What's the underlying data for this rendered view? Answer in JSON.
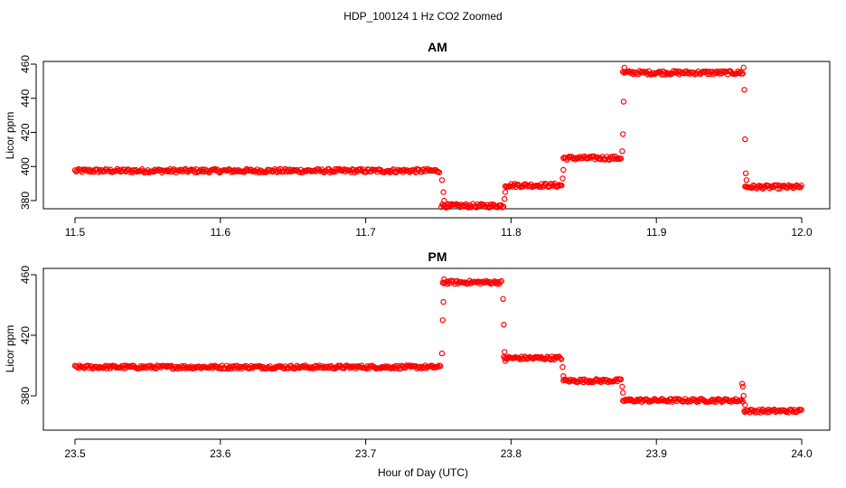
{
  "figure": {
    "title": "HDP_100124  1 Hz CO2 Zoomed",
    "xlabel": "Hour of Day (UTC)"
  },
  "chart_data": [
    {
      "type": "scatter",
      "title": "AM",
      "ylabel": "Licor ppm",
      "xlim": [
        11.5,
        12.0
      ],
      "ylim": [
        376,
        460
      ],
      "xticks": [
        "11.5",
        "11.6",
        "11.7",
        "11.8",
        "11.9",
        "12.0"
      ],
      "yticks": [
        "380",
        "400",
        "420",
        "440",
        "460"
      ],
      "marker_color": "#ff0000",
      "marker": "open circle",
      "series": [
        {
          "segments": [
            {
              "x_start": 11.5,
              "x_end": 11.751,
              "y": 397.5
            },
            {
              "x_start": 11.752,
              "x_end": 11.795,
              "y": 377
            },
            {
              "x_start": 11.796,
              "x_end": 11.835,
              "y": 389
            },
            {
              "x_start": 11.836,
              "x_end": 11.876,
              "y": 405
            },
            {
              "x_start": 11.877,
              "x_end": 11.96,
              "y": 455
            },
            {
              "x_start": 11.961,
              "x_end": 12.0,
              "y": 388
            }
          ],
          "transition_points": [
            {
              "x": 11.7525,
              "y": 392
            },
            {
              "x": 11.7535,
              "y": 385
            },
            {
              "x": 11.754,
              "y": 380
            },
            {
              "x": 11.7955,
              "y": 381
            },
            {
              "x": 11.796,
              "y": 385
            },
            {
              "x": 11.8355,
              "y": 393
            },
            {
              "x": 11.836,
              "y": 398
            },
            {
              "x": 11.8765,
              "y": 409
            },
            {
              "x": 11.877,
              "y": 419
            },
            {
              "x": 11.8775,
              "y": 438
            },
            {
              "x": 11.878,
              "y": 458
            },
            {
              "x": 11.96,
              "y": 458
            },
            {
              "x": 11.9605,
              "y": 445
            },
            {
              "x": 11.961,
              "y": 416
            },
            {
              "x": 11.9615,
              "y": 396
            },
            {
              "x": 11.962,
              "y": 392
            }
          ]
        }
      ]
    },
    {
      "type": "scatter",
      "title": "PM",
      "ylabel": "Licor ppm",
      "xlim": [
        23.5,
        24.0
      ],
      "ylim": [
        366,
        460
      ],
      "xticks": [
        "23.5",
        "23.6",
        "23.7",
        "23.8",
        "23.9",
        "24.0"
      ],
      "yticks": [
        "380",
        "420",
        "460"
      ],
      "marker_color": "#ff0000",
      "marker": "open circle",
      "series": [
        {
          "segments": [
            {
              "x_start": 23.5,
              "x_end": 23.752,
              "y": 399
            },
            {
              "x_start": 23.753,
              "x_end": 23.794,
              "y": 455
            },
            {
              "x_start": 23.795,
              "x_end": 23.835,
              "y": 405
            },
            {
              "x_start": 23.836,
              "x_end": 23.876,
              "y": 390
            },
            {
              "x_start": 23.877,
              "x_end": 23.96,
              "y": 377
            },
            {
              "x_start": 23.961,
              "x_end": 24.0,
              "y": 370
            }
          ],
          "transition_points": [
            {
              "x": 23.7525,
              "y": 408
            },
            {
              "x": 23.753,
              "y": 430
            },
            {
              "x": 23.7535,
              "y": 442
            },
            {
              "x": 23.754,
              "y": 457
            },
            {
              "x": 23.7945,
              "y": 444
            },
            {
              "x": 23.795,
              "y": 427
            },
            {
              "x": 23.7955,
              "y": 409
            },
            {
              "x": 23.796,
              "y": 403
            },
            {
              "x": 23.8355,
              "y": 399
            },
            {
              "x": 23.836,
              "y": 393
            },
            {
              "x": 23.8765,
              "y": 386
            },
            {
              "x": 23.877,
              "y": 382
            },
            {
              "x": 23.959,
              "y": 388
            },
            {
              "x": 23.9595,
              "y": 386
            },
            {
              "x": 23.96,
              "y": 380
            },
            {
              "x": 23.9605,
              "y": 370
            },
            {
              "x": 23.961,
              "y": 374
            }
          ]
        }
      ]
    }
  ]
}
